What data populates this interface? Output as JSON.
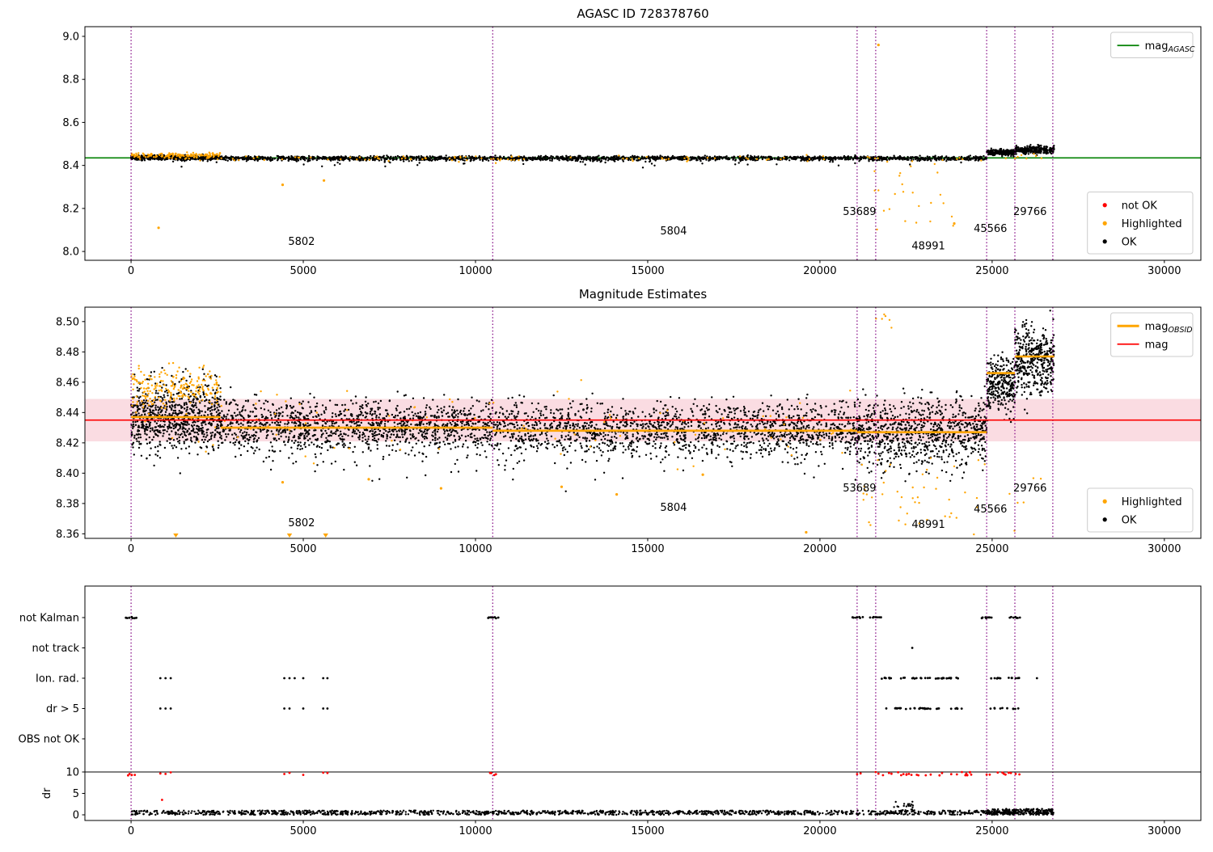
{
  "palette": {
    "ok": "#000000",
    "highlighted": "#ffa500",
    "not_ok": "#ff0000",
    "mag_agasc": "#008000",
    "mag": "#ff0000",
    "mag_obsid": "#ffa500",
    "band_fill": "#f6b9c6",
    "vline": "#800080",
    "spine": "#000000",
    "legend_border": "#cccccc",
    "background": "#ffffff"
  },
  "chart_data": [
    {
      "id": "agasc-mag",
      "type": "scatter",
      "title": "AGASC ID 728378760",
      "xlim": [
        -1340,
        31060
      ],
      "ylim": [
        7.959,
        9.045
      ],
      "xticks": [
        0,
        5000,
        10000,
        15000,
        20000,
        25000,
        30000
      ],
      "xtick_labels": [
        "0",
        "5000",
        "10000",
        "15000",
        "20000",
        "25000",
        "30000"
      ],
      "yticks": [
        8.0,
        8.2,
        8.4,
        8.6,
        8.8,
        9.0
      ],
      "ytick_labels": [
        "8.0",
        "8.2",
        "8.4",
        "8.6",
        "8.8",
        "9.0"
      ],
      "hlines": [
        {
          "y": 8.435,
          "color_key": "mag_agasc",
          "width": 1.6,
          "under": true
        }
      ],
      "vlines": [
        0,
        10500,
        21080,
        21620,
        24840,
        25660,
        26760
      ],
      "annotations": [
        {
          "text": "5802",
          "x": 4950,
          "y": 8.03
        },
        {
          "text": "5804",
          "x": 15750,
          "y": 8.08
        },
        {
          "text": "53689",
          "x": 21150,
          "y": 8.17
        },
        {
          "text": "48991",
          "x": 23150,
          "y": 8.01
        },
        {
          "text": "45566",
          "x": 24950,
          "y": 8.09
        },
        {
          "text": "29766",
          "x": 26100,
          "y": 8.17
        }
      ],
      "legends": [
        {
          "corner": "top-right",
          "entries": [
            {
              "type": "line",
              "color_key": "mag_agasc",
              "label_main": "mag",
              "label_sub": "AGASC"
            }
          ]
        },
        {
          "corner": "bottom-right",
          "entries": [
            {
              "type": "dot",
              "color_key": "not_ok",
              "label_main": "not OK"
            },
            {
              "type": "dot",
              "color_key": "highlighted",
              "label_main": "Highlighted"
            },
            {
              "type": "dot",
              "color_key": "ok",
              "label_main": "OK"
            }
          ]
        }
      ],
      "clusters": [
        {
          "series": "OK",
          "color_key": "ok",
          "x0": 0,
          "x1": 24840,
          "mean": 8.433,
          "sd": 0.005,
          "n": 2200
        },
        {
          "series": "OK",
          "color_key": "ok",
          "x0": 0,
          "x1": 2600,
          "mean": 8.438,
          "sd": 0.005,
          "n": 350
        },
        {
          "series": "OK",
          "color_key": "ok",
          "x0": 24840,
          "x1": 25660,
          "mean": 8.461,
          "sd": 0.007,
          "n": 220
        },
        {
          "series": "OK",
          "color_key": "ok",
          "x0": 25660,
          "x1": 26800,
          "mean": 8.472,
          "sd": 0.009,
          "n": 320
        },
        {
          "series": "OK",
          "color_key": "ok",
          "x0": 500,
          "x1": 24500,
          "mean": 8.412,
          "sd": 0.009,
          "n": 50
        },
        {
          "series": "Highlighted",
          "color_key": "highlighted",
          "x0": 0,
          "x1": 2600,
          "mean": 8.446,
          "sd": 0.006,
          "n": 140
        },
        {
          "series": "Highlighted",
          "color_key": "highlighted",
          "x0": 0,
          "x1": 24840,
          "mean": 8.432,
          "sd": 0.007,
          "n": 110
        },
        {
          "series": "Highlighted",
          "color_key": "highlighted",
          "x0": 21500,
          "x1": 23900,
          "y0": 8.1,
          "y1": 8.42,
          "n": 26
        },
        {
          "series": "Highlighted",
          "color_key": "highlighted",
          "x0": 24900,
          "x1": 26500,
          "mean": 8.44,
          "sd": 0.01,
          "n": 8
        }
      ],
      "points": [
        {
          "color_key": "highlighted",
          "x": 800,
          "y": 8.11
        },
        {
          "color_key": "highlighted",
          "x": 4400,
          "y": 8.31
        },
        {
          "color_key": "highlighted",
          "x": 5600,
          "y": 8.33
        },
        {
          "color_key": "highlighted",
          "x": 21700,
          "y": 8.96
        },
        {
          "color_key": "highlighted",
          "x": 23900,
          "y": 8.13
        }
      ]
    },
    {
      "id": "mag-estimates",
      "type": "scatter",
      "title": "Magnitude Estimates",
      "xlim": [
        -1340,
        31060
      ],
      "ylim": [
        8.357,
        8.5095
      ],
      "xticks": [
        0,
        5000,
        10000,
        15000,
        20000,
        25000,
        30000
      ],
      "xtick_labels": [
        "0",
        "5000",
        "10000",
        "15000",
        "20000",
        "25000",
        "30000"
      ],
      "yticks": [
        8.36,
        8.38,
        8.4,
        8.42,
        8.44,
        8.46,
        8.48,
        8.5
      ],
      "ytick_labels": [
        "8.36",
        "8.38",
        "8.40",
        "8.42",
        "8.44",
        "8.46",
        "8.48",
        "8.50"
      ],
      "band": {
        "y0": 8.421,
        "y1": 8.449,
        "color_key": "band_fill"
      },
      "hlines": [
        {
          "y": 8.435,
          "color_key": "mag",
          "width": 1.6,
          "under": false
        }
      ],
      "step_segments": [
        {
          "x0": 0,
          "x1": 2600,
          "y": 8.437
        },
        {
          "x0": 2600,
          "x1": 10500,
          "y": 8.43
        },
        {
          "x0": 10500,
          "x1": 21080,
          "y": 8.428
        },
        {
          "x0": 21080,
          "x1": 24840,
          "y": 8.427
        },
        {
          "x0": 24840,
          "x1": 25660,
          "y": 8.466
        },
        {
          "x0": 25660,
          "x1": 26800,
          "y": 8.477
        }
      ],
      "vlines": [
        0,
        10500,
        21080,
        21620,
        24840,
        25660,
        26760
      ],
      "annotations": [
        {
          "text": "5802",
          "x": 4950,
          "y": 8.365
        },
        {
          "text": "5804",
          "x": 15750,
          "y": 8.375
        },
        {
          "text": "53689",
          "x": 21150,
          "y": 8.388
        },
        {
          "text": "48991",
          "x": 23150,
          "y": 8.364
        },
        {
          "text": "45566",
          "x": 24950,
          "y": 8.374
        },
        {
          "text": "29766",
          "x": 26100,
          "y": 8.388
        }
      ],
      "legends": [
        {
          "corner": "top-right",
          "entries": [
            {
              "type": "line",
              "color_key": "mag_obsid",
              "label_main": "mag",
              "label_sub": "OBSID",
              "thick": true
            },
            {
              "type": "line",
              "color_key": "mag",
              "label_main": "mag"
            }
          ]
        },
        {
          "corner": "bottom-right",
          "entries": [
            {
              "type": "dot",
              "color_key": "highlighted",
              "label_main": "Highlighted"
            },
            {
              "type": "dot",
              "color_key": "ok",
              "label_main": "OK"
            }
          ]
        }
      ],
      "clusters": [
        {
          "series": "OK",
          "color_key": "ok",
          "x0": 0,
          "x1": 2600,
          "mean": 8.437,
          "sd": 0.011,
          "n": 800
        },
        {
          "series": "OK",
          "color_key": "ok",
          "x0": 2600,
          "x1": 10500,
          "mean": 8.431,
          "sd": 0.008,
          "n": 1300
        },
        {
          "series": "OK",
          "color_key": "ok",
          "x0": 10500,
          "x1": 21080,
          "mean": 8.429,
          "sd": 0.009,
          "n": 1600
        },
        {
          "series": "OK",
          "color_key": "ok",
          "x0": 21080,
          "x1": 24840,
          "mean": 8.427,
          "sd": 0.011,
          "n": 850
        },
        {
          "series": "OK",
          "color_key": "ok",
          "x0": 24840,
          "x1": 25660,
          "mean": 8.458,
          "sd": 0.009,
          "n": 280
        },
        {
          "series": "OK",
          "color_key": "ok",
          "x0": 25660,
          "x1": 26800,
          "mean": 8.474,
          "sd": 0.011,
          "n": 420
        },
        {
          "series": "OK",
          "color_key": "ok",
          "x0": 2600,
          "x1": 24840,
          "mean": 8.406,
          "sd": 0.007,
          "n": 70
        },
        {
          "series": "Highlighted",
          "color_key": "highlighted",
          "x0": 0,
          "x1": 2600,
          "mean": 8.456,
          "sd": 0.007,
          "n": 220
        },
        {
          "series": "Highlighted",
          "color_key": "highlighted",
          "x0": 0,
          "x1": 21000,
          "mean": 8.431,
          "sd": 0.012,
          "n": 100
        },
        {
          "series": "Highlighted",
          "color_key": "highlighted",
          "x0": 21080,
          "x1": 24840,
          "y0": 8.358,
          "y1": 8.412,
          "n": 45
        },
        {
          "series": "Highlighted",
          "color_key": "highlighted",
          "x0": 21400,
          "x1": 22300,
          "y0": 8.492,
          "y1": 8.509,
          "n": 6
        },
        {
          "series": "Highlighted",
          "color_key": "highlighted",
          "x0": 24900,
          "x1": 26700,
          "y0": 8.36,
          "y1": 8.4,
          "n": 6
        }
      ],
      "points": [
        {
          "color_key": "highlighted",
          "x": 4400,
          "y": 8.394
        },
        {
          "color_key": "highlighted",
          "x": 6900,
          "y": 8.396
        },
        {
          "color_key": "highlighted",
          "x": 9000,
          "y": 8.39
        },
        {
          "color_key": "highlighted",
          "x": 12500,
          "y": 8.391
        },
        {
          "color_key": "highlighted",
          "x": 14100,
          "y": 8.386
        },
        {
          "color_key": "highlighted",
          "x": 16600,
          "y": 8.399
        },
        {
          "color_key": "highlighted",
          "x": 19600,
          "y": 8.361
        }
      ],
      "triangles": [
        {
          "color_key": "highlighted",
          "x": 1300,
          "y": 8.359
        },
        {
          "color_key": "highlighted",
          "x": 4600,
          "y": 8.359
        },
        {
          "color_key": "highlighted",
          "x": 5650,
          "y": 8.359
        }
      ]
    },
    {
      "id": "flags",
      "type": "scatter",
      "title": "",
      "xlim": [
        -1340,
        31060
      ],
      "xticks": [
        0,
        5000,
        10000,
        15000,
        20000,
        25000,
        30000
      ],
      "xtick_labels": [
        "0",
        "5000",
        "10000",
        "15000",
        "20000",
        "25000",
        "30000"
      ],
      "vlines": [
        0,
        10500,
        21080,
        21620,
        24840,
        25660,
        26760
      ],
      "rows": [
        {
          "label": "not Kalman",
          "blobs": [
            0,
            10500,
            21080,
            21620,
            24840,
            25660
          ],
          "xs": [],
          "runs": []
        },
        {
          "label": "not track",
          "blobs": [],
          "xs": [
            22680
          ],
          "runs": []
        },
        {
          "label": "Ion. rad.",
          "blobs": [],
          "xs": [
            850,
            1000,
            1150,
            4450,
            4600,
            4750,
            5000,
            5580,
            5700,
            26300
          ],
          "runs": [
            {
              "x0": 21750,
              "x1": 24150,
              "n": 34
            },
            {
              "x0": 24880,
              "x1": 25850,
              "n": 12
            }
          ]
        },
        {
          "label": "dr > 5",
          "blobs": [],
          "xs": [
            850,
            1000,
            1150,
            4450,
            4600,
            5000,
            5580,
            5700
          ],
          "runs": [
            {
              "x0": 21750,
              "x1": 24250,
              "n": 30
            },
            {
              "x0": 24880,
              "x1": 25850,
              "n": 10
            }
          ]
        },
        {
          "label": "OBS not OK",
          "blobs": [],
          "xs": [],
          "runs": []
        }
      ],
      "dr_axis": {
        "label": "dr",
        "ticks": [
          0,
          5,
          10
        ],
        "tick_labels": [
          "0",
          "5",
          "10"
        ],
        "clip_line": 10,
        "red_blobs": [
          0,
          10500
        ],
        "red_xs": [
          850,
          1000,
          1150,
          4450,
          4600,
          5000,
          5580,
          5700,
          21080,
          21180,
          21620,
          21700,
          21830,
          24840,
          24930
        ],
        "red_runs": [
          {
            "x0": 22000,
            "x1": 24500,
            "n": 26
          },
          {
            "x0": 25150,
            "x1": 25880,
            "n": 9
          }
        ],
        "red_points": [
          {
            "x": 900,
            "dr": 3.5
          }
        ],
        "black_runs": [
          {
            "x0": 0,
            "x1": 26800,
            "dr0": 0.0,
            "dr1": 1.0,
            "n": 1400
          },
          {
            "x0": 22150,
            "x1": 22750,
            "dr0": 0.9,
            "dr1": 3.2,
            "n": 22
          },
          {
            "x0": 24840,
            "x1": 26800,
            "dr0": 0.0,
            "dr1": 1.4,
            "n": 170
          }
        ]
      }
    }
  ]
}
